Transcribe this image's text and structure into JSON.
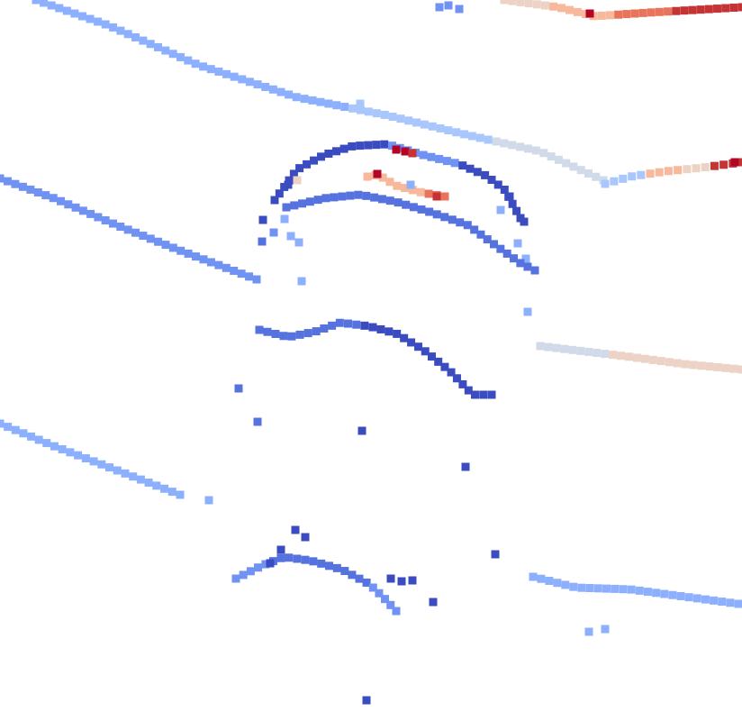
{
  "scene": {
    "description_free": true,
    "colormap": "coolwarm",
    "colors": {
      "c0": "#3b4cc0",
      "c1": "#5572df",
      "c2": "#6f92f3",
      "c3": "#8db0fe",
      "c4": "#aac7fd",
      "c5": "#d1dae9",
      "c6": "#ecd3c5",
      "c7": "#f7b89c",
      "c8": "#f49a7b",
      "c9": "#e7745b",
      "c10": "#c53334",
      "c11": "#b40426"
    }
  }
}
